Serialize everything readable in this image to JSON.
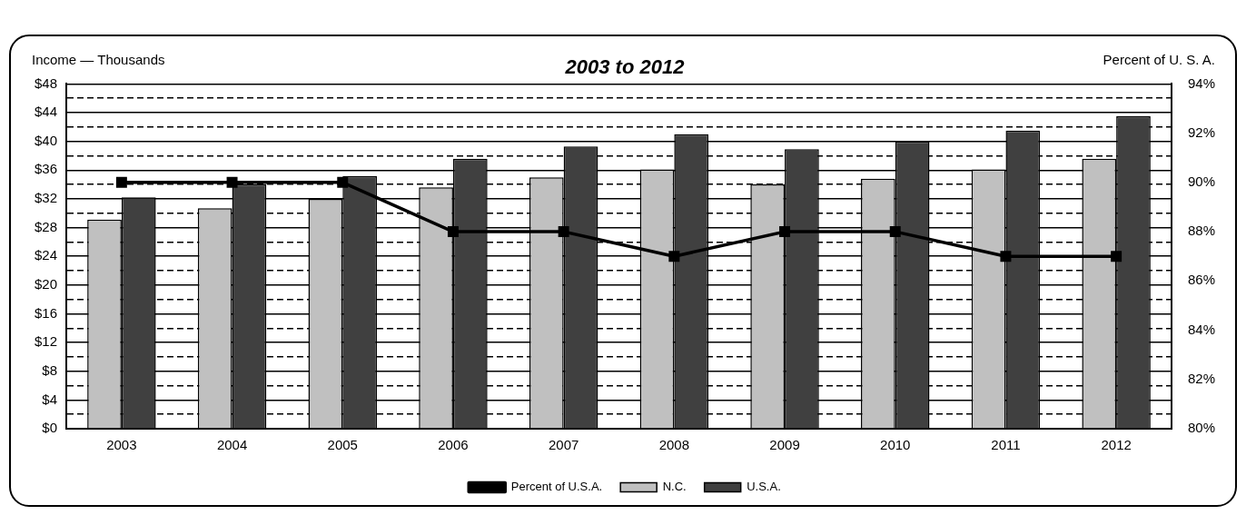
{
  "chart_data": {
    "type": "bar",
    "title": "2003 to 2012",
    "ylabel": "Income — Thousands",
    "y2label": "Percent of U. S. A.",
    "categories": [
      "2003",
      "2004",
      "2005",
      "2006",
      "2007",
      "2008",
      "2009",
      "2010",
      "2011",
      "2012"
    ],
    "series": [
      {
        "name": "N.C.",
        "color": "#c0c0c0",
        "values": [
          29.1,
          30.7,
          32.0,
          33.6,
          35.0,
          36.1,
          34.0,
          34.8,
          36.1,
          37.6
        ]
      },
      {
        "name": "U.S.A.",
        "color": "#404040",
        "values": [
          32.2,
          34.0,
          35.2,
          37.6,
          39.3,
          41.0,
          38.9,
          40.0,
          41.5,
          43.5
        ]
      },
      {
        "name": "Percent of U.S.A.",
        "type": "line",
        "axis": "y2",
        "color": "#000000",
        "values": [
          90,
          90,
          90,
          88,
          88,
          87,
          88,
          88,
          87,
          87
        ]
      }
    ],
    "ylim": [
      0,
      48
    ],
    "yticks": [
      {
        "value": 0,
        "label": "$0"
      },
      {
        "value": 2,
        "label": null
      },
      {
        "value": 4,
        "label": "$4"
      },
      {
        "value": 6,
        "label": null
      },
      {
        "value": 8,
        "label": "$8"
      },
      {
        "value": 10,
        "label": null
      },
      {
        "value": 12,
        "label": "$12"
      },
      {
        "value": 14,
        "label": null
      },
      {
        "value": 16,
        "label": "$16"
      },
      {
        "value": 18,
        "label": null
      },
      {
        "value": 20,
        "label": "$20"
      },
      {
        "value": 22,
        "label": null
      },
      {
        "value": 24,
        "label": "$24"
      },
      {
        "value": 26,
        "label": null
      },
      {
        "value": 28,
        "label": "$28"
      },
      {
        "value": 30,
        "label": null
      },
      {
        "value": 32,
        "label": "$32"
      },
      {
        "value": 34,
        "label": null
      },
      {
        "value": 36,
        "label": "$36"
      },
      {
        "value": 38,
        "label": null
      },
      {
        "value": 40,
        "label": "$40"
      },
      {
        "value": 42,
        "label": null
      },
      {
        "value": 44,
        "label": "$44"
      },
      {
        "value": 46,
        "label": null
      },
      {
        "value": 48,
        "label": "$48"
      }
    ],
    "y2lim": [
      80,
      94
    ],
    "y2ticks": [
      {
        "value": 80,
        "label": "80%"
      },
      {
        "value": 82,
        "label": "82%"
      },
      {
        "value": 84,
        "label": "84%"
      },
      {
        "value": 86,
        "label": "86%"
      },
      {
        "value": 88,
        "label": "88%"
      },
      {
        "value": 90,
        "label": "90%"
      },
      {
        "value": 92,
        "label": "92%"
      },
      {
        "value": 94,
        "label": "94%"
      }
    ],
    "grid": "y",
    "legend": "bottom",
    "marker": "square",
    "line_style": "solid"
  }
}
